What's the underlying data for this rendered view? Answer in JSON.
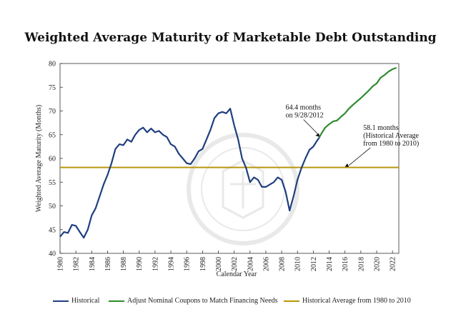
{
  "chart_data": {
    "type": "line",
    "title": "Weighted Average Maturity of Marketable Debt Outstanding",
    "xlabel": "Calendar Year",
    "ylabel": "Weighted Average Maturity (Months)",
    "xlim": [
      1980,
      2022.8
    ],
    "ylim": [
      40,
      80
    ],
    "x_ticks": [
      "1980",
      "1982",
      "1984",
      "1986",
      "1988",
      "1990",
      "1992",
      "1994",
      "1996",
      "1998",
      "2000",
      "2002",
      "2004",
      "2006",
      "2008",
      "2010",
      "2012",
      "2014",
      "2016",
      "2018",
      "2020",
      "2022"
    ],
    "y_ticks": [
      "40",
      "45",
      "50",
      "55",
      "60",
      "65",
      "70",
      "75",
      "80"
    ],
    "series": [
      {
        "name": "Historical",
        "color": "#1f3f7f",
        "points": [
          [
            1980,
            43.5
          ],
          [
            1980.5,
            44.5
          ],
          [
            1981,
            44.3
          ],
          [
            1981.5,
            46
          ],
          [
            1982,
            45.8
          ],
          [
            1982.5,
            44.5
          ],
          [
            1983,
            43.3
          ],
          [
            1983.5,
            45
          ],
          [
            1984,
            48
          ],
          [
            1984.5,
            49.5
          ],
          [
            1985,
            52
          ],
          [
            1985.5,
            54.5
          ],
          [
            1986,
            56.5
          ],
          [
            1986.5,
            59
          ],
          [
            1987,
            62
          ],
          [
            1987.5,
            63
          ],
          [
            1988,
            62.8
          ],
          [
            1988.5,
            64
          ],
          [
            1989,
            63.5
          ],
          [
            1989.5,
            65
          ],
          [
            1990,
            66
          ],
          [
            1990.5,
            66.5
          ],
          [
            1991,
            65.5
          ],
          [
            1991.5,
            66.3
          ],
          [
            1992,
            65.5
          ],
          [
            1992.5,
            65.8
          ],
          [
            1993,
            65
          ],
          [
            1993.5,
            64.5
          ],
          [
            1994,
            63
          ],
          [
            1994.5,
            62.5
          ],
          [
            1995,
            61
          ],
          [
            1995.5,
            60
          ],
          [
            1996,
            59
          ],
          [
            1996.5,
            58.8
          ],
          [
            1997,
            60
          ],
          [
            1997.5,
            61.5
          ],
          [
            1998,
            62
          ],
          [
            1998.5,
            64
          ],
          [
            1999,
            66
          ],
          [
            1999.5,
            68.5
          ],
          [
            2000,
            69.5
          ],
          [
            2000.5,
            69.8
          ],
          [
            2001,
            69.5
          ],
          [
            2001.5,
            70.5
          ],
          [
            2002,
            67
          ],
          [
            2002.5,
            64
          ],
          [
            2003,
            60
          ],
          [
            2003.5,
            58
          ],
          [
            2004,
            55
          ],
          [
            2004.5,
            56
          ],
          [
            2005,
            55.5
          ],
          [
            2005.5,
            54
          ],
          [
            2006,
            54
          ],
          [
            2006.5,
            54.5
          ],
          [
            2007,
            55
          ],
          [
            2007.5,
            56
          ],
          [
            2008,
            55.5
          ],
          [
            2008.5,
            53
          ],
          [
            2009,
            49
          ],
          [
            2009.5,
            52
          ],
          [
            2010,
            55.5
          ],
          [
            2010.5,
            58
          ],
          [
            2011,
            60
          ],
          [
            2011.5,
            61.8
          ],
          [
            2012,
            62.5
          ],
          [
            2012.5,
            63.8
          ],
          [
            2012.75,
            64.4
          ]
        ]
      },
      {
        "name": "Adjust Nominal Coupons to Match Financing Needs",
        "color": "#2e8b2e",
        "points": [
          [
            2012.75,
            64.4
          ],
          [
            2013,
            65.2
          ],
          [
            2013.5,
            66.5
          ],
          [
            2014,
            67.2
          ],
          [
            2014.5,
            67.8
          ],
          [
            2015,
            68
          ],
          [
            2015.5,
            68.8
          ],
          [
            2016,
            69.5
          ],
          [
            2016.5,
            70.5
          ],
          [
            2017,
            71.3
          ],
          [
            2017.5,
            72
          ],
          [
            2018,
            72.7
          ],
          [
            2018.5,
            73.5
          ],
          [
            2019,
            74.3
          ],
          [
            2019.5,
            75.2
          ],
          [
            2020,
            75.8
          ],
          [
            2020.5,
            77
          ],
          [
            2021,
            77.6
          ],
          [
            2021.5,
            78.3
          ],
          [
            2022,
            78.8
          ],
          [
            2022.5,
            79.1
          ]
        ]
      },
      {
        "name": "Historical Average from 1980 to 2010",
        "color": "#b8960c",
        "points": [
          [
            1980,
            58.1
          ],
          [
            2022.8,
            58.1
          ]
        ]
      }
    ],
    "annotations": [
      {
        "lines": [
          "64.4 months",
          "on 9/28/2012"
        ],
        "x": 2012.75,
        "y": 64.4,
        "text_at": [
          2008.5,
          70.3
        ]
      },
      {
        "lines": [
          "58.1 months",
          "(Historical Average",
          "from 1980 to 2010)"
        ],
        "x": 2016.5,
        "y": 58.1,
        "text_at": [
          2018.3,
          66
        ]
      }
    ]
  }
}
